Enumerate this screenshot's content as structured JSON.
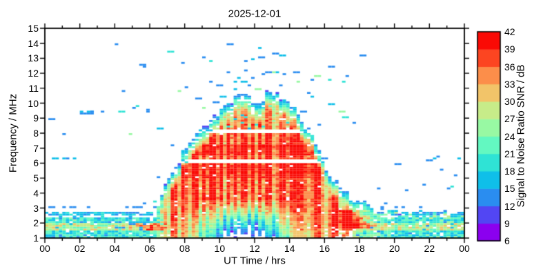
{
  "chart_data": {
    "type": "heatmap",
    "title": "2025-12-01",
    "xlabel": "UT Time / hrs",
    "ylabel": "Frequency / MHz",
    "x_range_hours": [
      0,
      24
    ],
    "x_tick_labels": [
      "00",
      "02",
      "04",
      "06",
      "08",
      "10",
      "12",
      "14",
      "16",
      "18",
      "20",
      "22",
      "00"
    ],
    "x_major_tick_step_hours": 2,
    "x_minor_tick_step_hours": 1,
    "y_range_mhz": [
      1,
      15
    ],
    "y_ticks": [
      1,
      2,
      3,
      4,
      5,
      6,
      7,
      8,
      9,
      10,
      11,
      12,
      13,
      14,
      15
    ],
    "grid": false,
    "colorbar": {
      "label": "Signal to Noise Ratio SNR / dB",
      "range_db": [
        6,
        42
      ],
      "tick_values": [
        6,
        9,
        12,
        15,
        18,
        21,
        24,
        27,
        30,
        33,
        36,
        39,
        42
      ],
      "segment_colors_low_to_high": [
        "#8b00ef",
        "#5246f3",
        "#2a8df0",
        "#0fbfe9",
        "#2fe3d5",
        "#63f8c1",
        "#98f9a3",
        "#c7ec89",
        "#f2c469",
        "#fc8e4a",
        "#fc4521",
        "#fa0a05"
      ]
    },
    "texture_seed": 42,
    "f_layer_envelope": {
      "hours": [
        6.3,
        6.6,
        6.9,
        7.2,
        7.6,
        8.0,
        8.4,
        8.8,
        9.2,
        9.6,
        10.0,
        10.4,
        10.8,
        11.2,
        11.5,
        11.8,
        12.1,
        12.4,
        12.7,
        13.0,
        13.3,
        13.6,
        14.0,
        14.4,
        14.8,
        15.1,
        15.4,
        15.7,
        16.0,
        16.4,
        16.8,
        17.2,
        17.7,
        18.2,
        18.8,
        19.4,
        20.2,
        21.0,
        22.0,
        23.0,
        24.0
      ],
      "max_freq_mhz": [
        2.6,
        3.4,
        4.3,
        5.0,
        5.8,
        6.9,
        7.4,
        7.8,
        8.4,
        9.0,
        9.4,
        9.7,
        10.2,
        10.6,
        10.7,
        10.3,
        10.0,
        10.1,
        10.5,
        10.7,
        10.5,
        10.2,
        9.9,
        9.3,
        8.7,
        8.3,
        7.6,
        6.7,
        5.9,
        5.0,
        4.4,
        3.9,
        3.5,
        3.2,
        2.9,
        2.7,
        2.6,
        2.6,
        2.55,
        2.5,
        2.5
      ]
    },
    "core_hours": {
      "rise_start": 6.3,
      "full_start": 7.3,
      "full_end": 16.9,
      "gone": 19.3
    },
    "night_band": {
      "f_range_mhz": [
        1.0,
        2.35
      ],
      "typical_snr_db": [
        15,
        27
      ],
      "orange_streak_mhz": [
        1.45,
        1.95
      ],
      "white_gap_mhz": [
        2.35,
        2.55
      ],
      "cyan_line_mhz": [
        2.55,
        2.8
      ],
      "sparse_blue_line_mhz": [
        2.95,
        3.15
      ]
    },
    "daytime_absorption": {
      "center_hour": 11.4,
      "width_hours": 2.7,
      "below_mhz": 3.6,
      "strength_db": 32
    },
    "dawn_enhancement": {
      "center_hour": 6.1,
      "width_hours": 1.1,
      "boost_db": 10
    },
    "dusk_enhancement": {
      "center_hour": 17.6,
      "width_hours": 1.0,
      "f_range_mhz": [
        1.6,
        2.9
      ],
      "boost_db": 12
    },
    "gap_lines_mhz": [
      [
        5.98,
        6.3
      ],
      [
        7.95,
        8.28
      ]
    ],
    "sporadic_dashes": [
      {
        "t0": 0.4,
        "t1": 1.5,
        "f": 6.27,
        "snr": 13,
        "thick": 1
      },
      {
        "t0": 1.95,
        "t1": 2.5,
        "f": 9.4,
        "snr": 13,
        "thick": 2
      }
    ],
    "sporadic_dots": [
      [
        1.15,
        8.0,
        13
      ],
      [
        2.62,
        9.4,
        13
      ],
      [
        0.35,
        9.0,
        13
      ],
      [
        3.3,
        9.45,
        13
      ],
      [
        4.3,
        9.5,
        19
      ],
      [
        5.12,
        9.65,
        13
      ],
      [
        5.3,
        9.78,
        19
      ],
      [
        5.55,
        12.55,
        13
      ],
      [
        5.7,
        12.42,
        13
      ],
      [
        4.05,
        13.9,
        13
      ],
      [
        7.05,
        13.5,
        19
      ],
      [
        9.0,
        13.05,
        13
      ],
      [
        10.45,
        13.95,
        13
      ],
      [
        11.9,
        12.9,
        16
      ],
      [
        13.05,
        13.3,
        13
      ],
      [
        12.3,
        13.75,
        16
      ],
      [
        14.2,
        12.1,
        13
      ],
      [
        15.3,
        11.6,
        13
      ],
      [
        15.55,
        11.8,
        25
      ],
      [
        16.3,
        12.4,
        13
      ],
      [
        17.0,
        11.5,
        19
      ],
      [
        18.15,
        13.15,
        13
      ],
      [
        16.9,
        9.4,
        25
      ],
      [
        17.15,
        9.1,
        19
      ],
      [
        20.1,
        5.9,
        13
      ],
      [
        21.9,
        6.2,
        13
      ],
      [
        22.35,
        6.35,
        16
      ],
      [
        22.55,
        6.5,
        13
      ],
      [
        23.6,
        6.3,
        16
      ],
      [
        19.3,
        2.95,
        13
      ]
    ],
    "scatter": {
      "seed": 11,
      "count": 66,
      "right_count": 9
    }
  }
}
